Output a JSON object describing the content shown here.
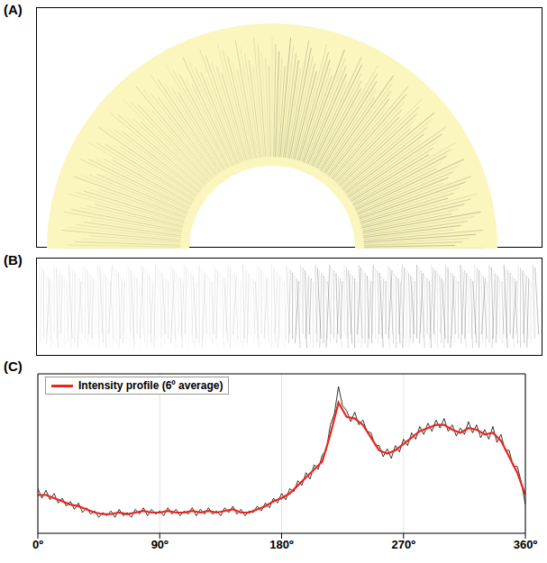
{
  "panel_labels": [
    "(A)",
    "(B)",
    "(C)"
  ],
  "chart_data": {
    "type": "line",
    "xlim": [
      0,
      360
    ],
    "xticks": [
      {
        "value": 0,
        "label": "0º"
      },
      {
        "value": 90,
        "label": "90º"
      },
      {
        "value": 180,
        "label": "180º"
      },
      {
        "value": 270,
        "label": "270º"
      },
      {
        "value": 360,
        "label": "360º"
      }
    ],
    "ylim": [
      0,
      100
    ],
    "tick_labels": "x",
    "grid": true,
    "legend": "upper left",
    "series": [
      {
        "color": "#000000",
        "x": [
          0,
          3,
          6,
          9,
          12,
          15,
          18,
          21,
          24,
          27,
          30,
          33,
          36,
          39,
          42,
          45,
          48,
          51,
          54,
          57,
          60,
          63,
          66,
          69,
          72,
          75,
          78,
          81,
          84,
          87,
          90,
          93,
          96,
          99,
          102,
          105,
          108,
          111,
          114,
          117,
          120,
          123,
          126,
          129,
          132,
          135,
          138,
          141,
          144,
          147,
          150,
          153,
          156,
          159,
          162,
          165,
          168,
          171,
          174,
          177,
          180,
          183,
          186,
          189,
          192,
          195,
          198,
          201,
          204,
          207,
          210,
          213,
          216,
          219,
          222,
          225,
          228,
          231,
          234,
          237,
          240,
          243,
          246,
          249,
          252,
          255,
          258,
          261,
          264,
          267,
          270,
          273,
          276,
          279,
          282,
          285,
          288,
          291,
          294,
          297,
          300,
          303,
          306,
          309,
          312,
          315,
          318,
          321,
          324,
          327,
          330,
          333,
          336,
          339,
          342,
          345,
          348,
          351,
          354,
          357,
          360
        ],
        "values": [
          28,
          22,
          27,
          21,
          25,
          19,
          22,
          17,
          20,
          15,
          19,
          13,
          16,
          12,
          14,
          10,
          13,
          11,
          14,
          10,
          15,
          11,
          13,
          10,
          15,
          12,
          16,
          11,
          15,
          12,
          14,
          11,
          16,
          12,
          15,
          11,
          14,
          12,
          16,
          11,
          15,
          12,
          16,
          12,
          14,
          11,
          16,
          13,
          17,
          12,
          15,
          11,
          14,
          13,
          17,
          14,
          19,
          16,
          22,
          19,
          25,
          21,
          28,
          26,
          33,
          30,
          38,
          34,
          43,
          40,
          49,
          52,
          68,
          75,
          92,
          80,
          77,
          70,
          76,
          68,
          71,
          64,
          63,
          55,
          55,
          48,
          53,
          47,
          55,
          51,
          59,
          55,
          63,
          59,
          67,
          62,
          69,
          64,
          71,
          66,
          72,
          64,
          68,
          61,
          66,
          62,
          70,
          63,
          68,
          60,
          65,
          59,
          67,
          57,
          62,
          52,
          52,
          42,
          42,
          32,
          18
        ]
      },
      {
        "name": "Intensity profile (6º average)",
        "color": "#e8281e",
        "x": [
          0,
          6,
          12,
          18,
          24,
          30,
          36,
          42,
          48,
          54,
          60,
          66,
          72,
          78,
          84,
          90,
          96,
          102,
          108,
          114,
          120,
          126,
          132,
          138,
          144,
          150,
          156,
          162,
          168,
          174,
          180,
          186,
          192,
          198,
          204,
          210,
          216,
          222,
          228,
          234,
          240,
          246,
          252,
          258,
          264,
          270,
          276,
          282,
          288,
          294,
          300,
          306,
          312,
          318,
          324,
          330,
          336,
          342,
          348,
          354,
          360
        ],
        "values": [
          24,
          24,
          22,
          20,
          18,
          17,
          15,
          13,
          12,
          12,
          13,
          12,
          13,
          14,
          13,
          13,
          14,
          13,
          13,
          14,
          13,
          14,
          13,
          14,
          15,
          13,
          13,
          15,
          17,
          20,
          22,
          25,
          30,
          35,
          40,
          45,
          62,
          82,
          73,
          72,
          68,
          60,
          52,
          50,
          52,
          56,
          60,
          64,
          66,
          68,
          68,
          65,
          63,
          66,
          65,
          62,
          63,
          58,
          48,
          38,
          24
        ]
      }
    ]
  }
}
